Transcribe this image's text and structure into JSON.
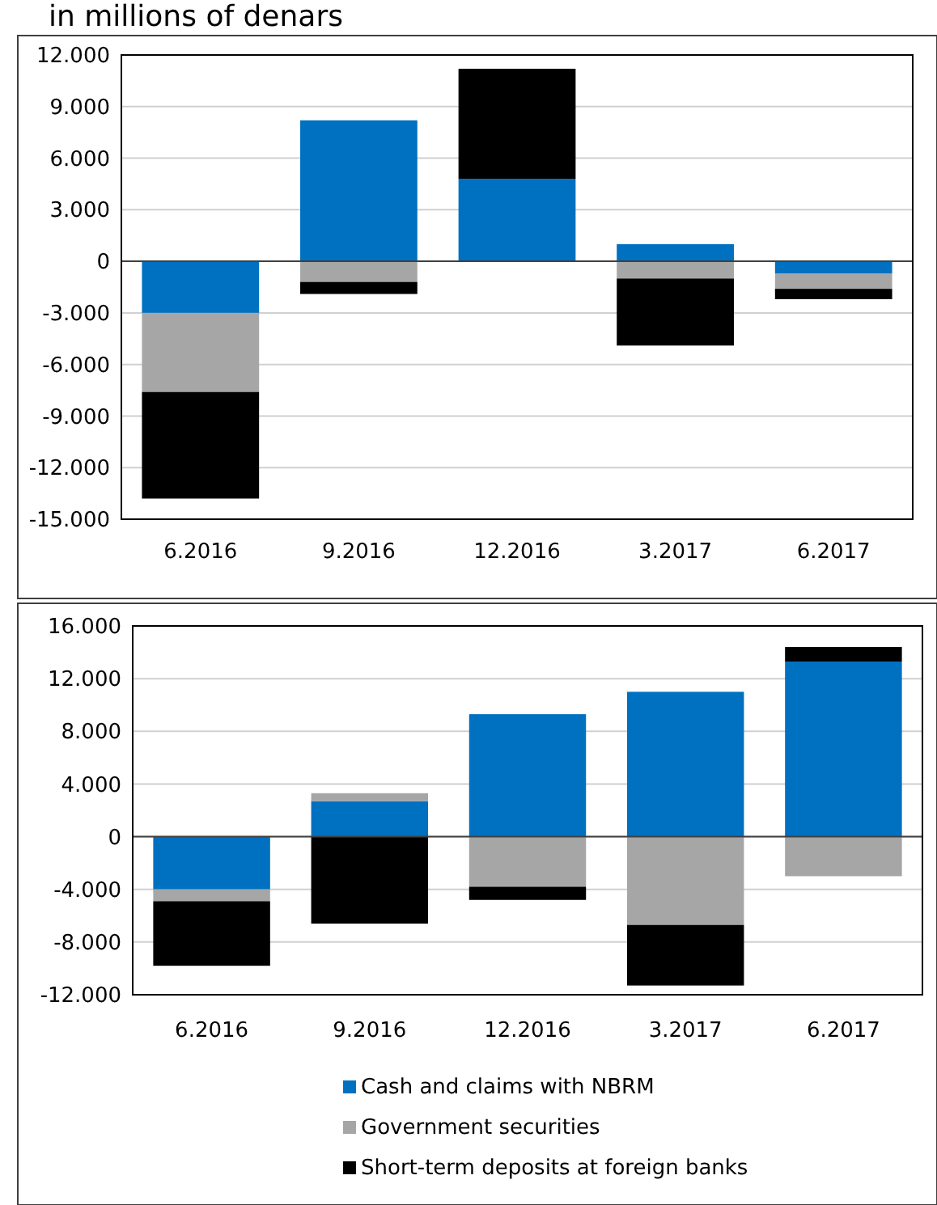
{
  "chart_data": [
    {
      "type": "bar",
      "title": "in millions of denars",
      "categories": [
        "6.2016",
        "9.2016",
        "12.2016",
        "3.2017",
        "6.2017"
      ],
      "stacked": true,
      "grid": "y",
      "legend": false,
      "ylim": [
        -15000,
        12000
      ],
      "yticks": [
        {
          "value": -15000,
          "label": "-15.000"
        },
        {
          "value": -12000,
          "label": "-12.000"
        },
        {
          "value": -9000,
          "label": "-9.000"
        },
        {
          "value": -6000,
          "label": "-6.000"
        },
        {
          "value": -3000,
          "label": "-3.000"
        },
        0,
        {
          "value": 3000,
          "label": "3.000"
        },
        {
          "value": 6000,
          "label": "6.000"
        },
        {
          "value": 9000,
          "label": "9.000"
        },
        {
          "value": 12000,
          "label": "12.000"
        }
      ],
      "series": [
        {
          "color": "#0070c0",
          "values": [
            -3000,
            8200,
            4800,
            1000,
            -700
          ]
        },
        {
          "color": "#a6a6a6",
          "values": [
            -4600,
            -1200,
            0,
            -1000,
            -900
          ]
        },
        {
          "color": "#000000",
          "values": [
            -6200,
            -700,
            6400,
            -3900,
            -600
          ]
        }
      ]
    },
    {
      "type": "bar",
      "categories": [
        "6.2016",
        "9.2016",
        "12.2016",
        "3.2017",
        "6.2017"
      ],
      "stacked": true,
      "grid": "y",
      "legend": "bottom",
      "ylim": [
        -12000,
        16000
      ],
      "yticks": [
        {
          "value": -12000,
          "label": "-12.000"
        },
        {
          "value": -8000,
          "label": "-8.000"
        },
        {
          "value": -4000,
          "label": "-4.000"
        },
        0,
        {
          "value": 4000,
          "label": "4.000"
        },
        {
          "value": 8000,
          "label": "8.000"
        },
        {
          "value": 12000,
          "label": "12.000"
        },
        {
          "value": 16000,
          "label": "16.000"
        }
      ],
      "series": [
        {
          "name": "Cash and claims with NBRM",
          "color": "#0070c0",
          "values": [
            -4000,
            2700,
            9300,
            11000,
            13300
          ]
        },
        {
          "name": "Government securities",
          "color": "#a6a6a6",
          "values": [
            -900,
            600,
            -3800,
            -6700,
            -3000
          ]
        },
        {
          "name": "Short-term deposits at foreign banks",
          "color": "#000000",
          "values": [
            -4900,
            -6600,
            -1000,
            -4600,
            1100
          ]
        }
      ]
    }
  ]
}
